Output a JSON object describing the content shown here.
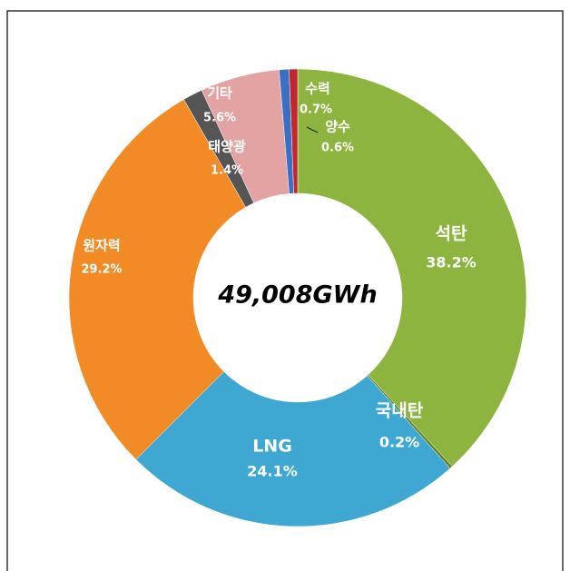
{
  "chart_data": {
    "type": "donut",
    "center_label": "49,008GWh",
    "categories": [
      "석탄",
      "국내탄",
      "LNG",
      "원자력",
      "태양광",
      "기타",
      "수력",
      "양수"
    ],
    "values": [
      38.2,
      0.2,
      24.1,
      29.2,
      1.4,
      5.6,
      0.7,
      0.6
    ],
    "value_labels": [
      "38.2%",
      "0.2%",
      "24.1%",
      "29.2%",
      "1.4%",
      "5.6%",
      "0.7%",
      "0.6%"
    ],
    "colors": [
      "#8db43e",
      "#5f7d24",
      "#3ea8d2",
      "#f28a26",
      "#555555",
      "#e4a3a3",
      "#3a6fc4",
      "#c4262b"
    ]
  }
}
